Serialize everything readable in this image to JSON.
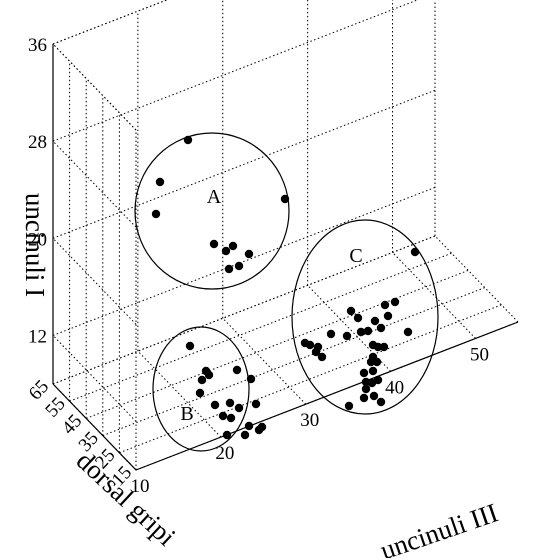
{
  "chart_data": {
    "type": "scatter",
    "projection": "3d",
    "axes": {
      "x": {
        "label": "uncinuli III",
        "range": [
          10,
          55
        ],
        "ticks": [
          "10",
          "20",
          "30",
          "40",
          "50"
        ]
      },
      "y": {
        "label": "dorsal gripi",
        "range": [
          15,
          65
        ],
        "ticks": [
          "15",
          "25",
          "35",
          "45",
          "55",
          "65"
        ]
      },
      "z": {
        "label": "uncinuli I",
        "range": [
          8,
          36
        ],
        "ticks": [
          "12",
          "20",
          "28",
          "36"
        ]
      }
    },
    "grid": true,
    "clusters": [
      {
        "name": "A"
      },
      {
        "name": "B"
      },
      {
        "name": "C"
      }
    ],
    "points": [
      [
        188,
        140
      ],
      [
        160,
        182
      ],
      [
        156,
        214
      ],
      [
        285,
        199
      ],
      [
        214,
        244
      ],
      [
        226,
        251
      ],
      [
        233,
        246
      ],
      [
        249,
        254
      ],
      [
        229,
        269
      ],
      [
        239,
        266
      ],
      [
        190,
        346
      ],
      [
        206,
        371
      ],
      [
        209,
        375
      ],
      [
        202,
        380
      ],
      [
        237,
        370
      ],
      [
        251,
        379
      ],
      [
        200,
        393
      ],
      [
        215,
        405
      ],
      [
        230,
        403
      ],
      [
        239,
        408
      ],
      [
        256,
        404
      ],
      [
        223,
        416
      ],
      [
        231,
        418
      ],
      [
        249,
        426
      ],
      [
        245,
        435
      ],
      [
        259,
        430
      ],
      [
        227,
        435
      ],
      [
        262,
        427
      ],
      [
        415,
        252
      ],
      [
        305,
        343
      ],
      [
        310,
        345
      ],
      [
        318,
        347
      ],
      [
        316,
        352
      ],
      [
        322,
        357
      ],
      [
        331,
        334
      ],
      [
        347,
        336
      ],
      [
        351,
        311
      ],
      [
        358,
        318
      ],
      [
        361,
        332
      ],
      [
        368,
        331
      ],
      [
        375,
        321
      ],
      [
        381,
        328
      ],
      [
        385,
        305
      ],
      [
        388,
        316
      ],
      [
        395,
        302
      ],
      [
        408,
        332
      ],
      [
        373,
        345
      ],
      [
        378,
        347
      ],
      [
        384,
        347
      ],
      [
        373,
        357
      ],
      [
        371,
        362
      ],
      [
        377,
        362
      ],
      [
        364,
        373
      ],
      [
        373,
        371
      ],
      [
        366,
        382
      ],
      [
        372,
        383
      ],
      [
        378,
        380
      ],
      [
        366,
        389
      ],
      [
        374,
        396
      ],
      [
        364,
        398
      ],
      [
        381,
        402
      ],
      [
        349,
        406
      ]
    ]
  }
}
